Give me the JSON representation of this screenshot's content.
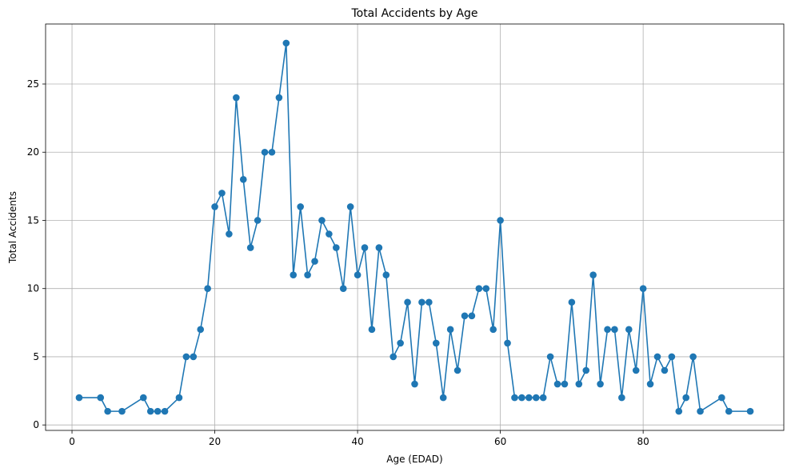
{
  "chart_data": {
    "type": "line",
    "title": "Total Accidents by Age",
    "xlabel": "Age (EDAD)",
    "ylabel": "Total Accidents",
    "xlim": [
      -3.7,
      99.7
    ],
    "ylim": [
      -0.4,
      29.4
    ],
    "xticks": [
      0,
      20,
      40,
      60,
      80
    ],
    "yticks": [
      0,
      5,
      10,
      15,
      20,
      25
    ],
    "grid": true,
    "line_color": "#1f77b4",
    "marker": "circle",
    "series": [
      {
        "x": [
          1,
          4,
          5,
          7,
          10,
          11,
          12,
          13,
          15,
          16,
          17,
          18,
          19,
          20,
          21,
          22,
          23,
          24,
          25,
          26,
          27,
          28,
          29,
          30,
          31,
          32,
          33,
          34,
          35,
          36,
          37,
          38,
          39,
          40,
          41,
          42,
          43,
          44,
          45,
          46,
          47,
          48,
          49,
          50,
          51,
          52,
          53,
          54,
          55,
          56,
          57,
          58,
          59,
          60,
          61,
          62,
          63,
          64,
          65,
          66,
          67,
          68,
          69,
          70,
          71,
          72,
          73,
          74,
          75,
          76,
          77,
          78,
          79,
          80,
          81,
          82,
          83,
          84,
          85,
          86,
          87,
          88,
          91,
          92,
          95
        ],
        "values": [
          2,
          2,
          1,
          1,
          2,
          1,
          1,
          1,
          2,
          5,
          5,
          7,
          10,
          16,
          17,
          14,
          24,
          18,
          13,
          15,
          20,
          20,
          24,
          28,
          11,
          16,
          11,
          12,
          15,
          14,
          13,
          10,
          16,
          11,
          13,
          7,
          13,
          11,
          5,
          6,
          9,
          3,
          9,
          9,
          6,
          2,
          7,
          4,
          8,
          8,
          10,
          10,
          7,
          15,
          6,
          2,
          2,
          2,
          2,
          2,
          5,
          3,
          3,
          9,
          3,
          4,
          11,
          3,
          7,
          7,
          2,
          7,
          4,
          10,
          3,
          5,
          4,
          5,
          1,
          2,
          5,
          1,
          2,
          1,
          1
        ]
      }
    ]
  }
}
